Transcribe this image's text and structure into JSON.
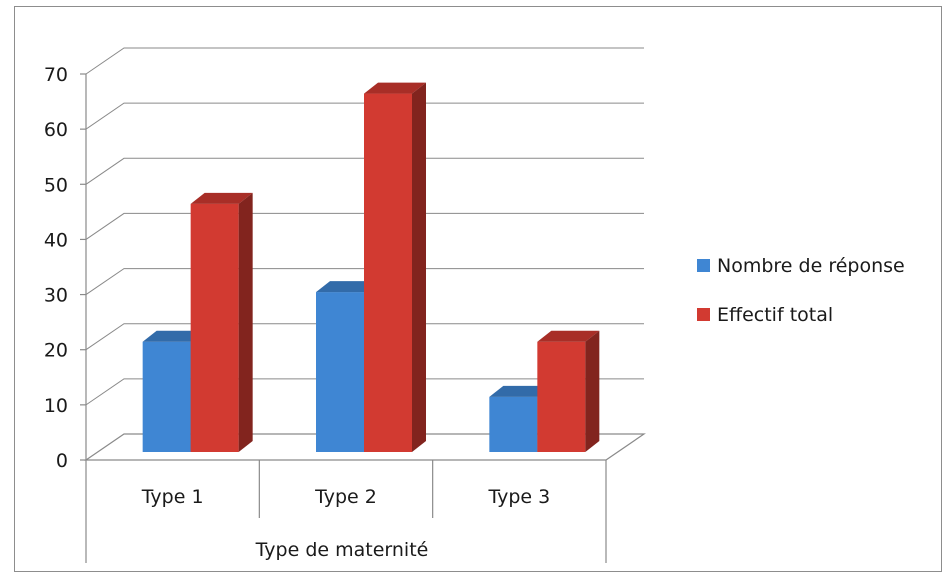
{
  "chart_data": {
    "type": "bar",
    "title": "",
    "xlabel": "Type de maternité",
    "ylabel": "",
    "categories": [
      "Type 1",
      "Type 2",
      "Type 3"
    ],
    "series": [
      {
        "name": "Nombre de réponse",
        "values": [
          20,
          29,
          10
        ],
        "color": "#3f86d3"
      },
      {
        "name": "Effectif total",
        "values": [
          45,
          65,
          20
        ],
        "color": "#d23a31"
      }
    ],
    "ylim": [
      0,
      70
    ],
    "yticks": [
      0,
      10,
      20,
      30,
      40,
      50,
      60,
      70
    ],
    "grid": true,
    "legend_position": "right",
    "style": "3d-clustered-column"
  }
}
